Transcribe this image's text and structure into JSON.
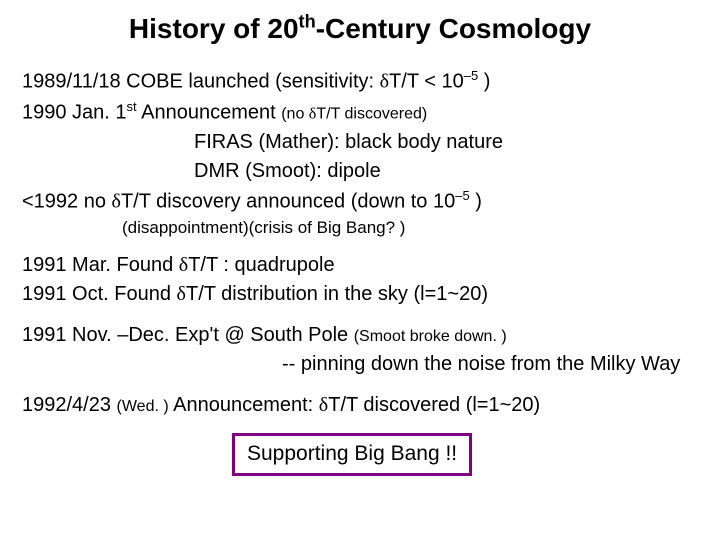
{
  "title": {
    "part1": "History of 20",
    "th": "th",
    "part2": "-Century Cosmology"
  },
  "lines": {
    "l1a": "1989/11/18  COBE launched  (sensitivity: ",
    "l1delta": "δ",
    "l1b": "T/T < 10",
    "l1exp": "–5",
    "l1c": " )",
    "l2a": "1990 Jan.  1",
    "l2st": "st",
    "l2b": " Announcement  ",
    "l2small": "(no ",
    "l2delta": "δ",
    "l2small2": "T/T discovered)",
    "l3": "FIRAS (Mather): black body nature",
    "l4": "DMR (Smoot): dipole",
    "l5a": "<1992   no ",
    "l5delta": "δ",
    "l5b": "T/T discovery announced (down to 10",
    "l5exp": "–5",
    "l5c": " )",
    "l6": "(disappointment)(crisis of Big Bang? )",
    "l7a": "1991 Mar.  Found ",
    "l7delta": "δ",
    "l7b": "T/T :  quadrupole",
    "l8a": "1991 Oct.   Found ",
    "l8delta": "δ",
    "l8b": "T/T distribution in the sky (l=1~20)",
    "l9a": "1991 Nov. –Dec.  Exp't @ South Pole  ",
    "l9small": "(Smoot broke down. )",
    "l10": "--  pinning down the noise from the Milky Way",
    "l11a": "1992/4/23 ",
    "l11small": "(Wed. )",
    "l11b": "  Announcement: ",
    "l11delta": "δ",
    "l11c": "T/T discovered (l=1~20)",
    "box": "Supporting Big Bang !!"
  },
  "colors": {
    "title_bg": "#ffffff",
    "title_fg": "#000000",
    "box_border": "#800080",
    "text": "#000000",
    "bg": "#ffffff"
  }
}
